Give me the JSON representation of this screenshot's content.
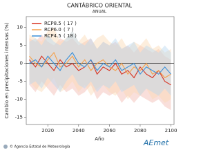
{
  "chart_data": {
    "type": "line",
    "title": "CANTÁBRICO ORIENTAL",
    "subtitle": "ANUAL",
    "ylabel": "Cambio en precipitaciones intensas (%)",
    "xlabel": "Año",
    "footer": "© Agencia Estatal de Meteorología",
    "logo": "AEmet",
    "x": [
      2008,
      2012,
      2016,
      2020,
      2024,
      2028,
      2032,
      2036,
      2040,
      2044,
      2048,
      2052,
      2056,
      2060,
      2064,
      2068,
      2072,
      2076,
      2080,
      2084,
      2088,
      2092,
      2096,
      2100
    ],
    "xlim": [
      2006,
      2102
    ],
    "xticks": [
      2020,
      2040,
      2060,
      2080,
      2100
    ],
    "ylim": [
      -17,
      13
    ],
    "yticks": [
      -15,
      -10,
      -5,
      0,
      5,
      10
    ],
    "legend": "upper-left",
    "series": [
      {
        "name": "RCP8.5",
        "label": "( 17 )",
        "color": "#d7301f",
        "band_color": "#f2b8b0",
        "values": [
          1,
          -1,
          2,
          0,
          -2,
          1,
          -1,
          0,
          -2,
          -1,
          1,
          -3,
          -1,
          -2,
          0,
          -3,
          -2,
          -4,
          -1,
          -3,
          -4,
          -2,
          -5,
          -6
        ],
        "upper": [
          7,
          6,
          8,
          6,
          5,
          7,
          6,
          7,
          5,
          6,
          7,
          4,
          6,
          5,
          6,
          4,
          5,
          3,
          5,
          4,
          3,
          4,
          2,
          1
        ],
        "lower": [
          -6,
          -8,
          -5,
          -7,
          -9,
          -6,
          -8,
          -7,
          -9,
          -8,
          -6,
          -10,
          -8,
          -9,
          -8,
          -11,
          -9,
          -11,
          -9,
          -10,
          -11,
          -10,
          -12,
          -13
        ]
      },
      {
        "name": "RCP6.0",
        "label": "( 7 )",
        "color": "#f5a04a",
        "band_color": "#fbd9b4",
        "values": [
          2,
          0,
          -1,
          1,
          3,
          -1,
          0,
          2,
          -1,
          1,
          -2,
          0,
          1,
          -1,
          -2,
          0,
          -3,
          -1,
          -2,
          0,
          -3,
          -2,
          -4,
          -3
        ],
        "upper": [
          8,
          7,
          6,
          9,
          10,
          6,
          7,
          9,
          6,
          8,
          5,
          7,
          8,
          6,
          5,
          7,
          4,
          6,
          5,
          7,
          4,
          5,
          3,
          4
        ],
        "lower": [
          -5,
          -7,
          -8,
          -6,
          -4,
          -8,
          -7,
          -5,
          -8,
          -6,
          -9,
          -7,
          -6,
          -8,
          -9,
          -7,
          -10,
          -8,
          -9,
          -7,
          -10,
          -9,
          -11,
          -10
        ]
      },
      {
        "name": "RCP4.5",
        "label": "( 18 )",
        "color": "#3a8fd8",
        "band_color": "#b7d6f0",
        "values": [
          0,
          1,
          -1,
          2,
          0,
          -2,
          1,
          3,
          0,
          -1,
          1,
          -2,
          0,
          -1,
          1,
          -2,
          -1,
          0,
          -3,
          -1,
          -2,
          -3,
          -1,
          -3
        ],
        "upper": [
          6,
          7,
          5,
          8,
          6,
          5,
          7,
          9,
          6,
          5,
          7,
          4,
          6,
          5,
          7,
          4,
          5,
          6,
          3,
          5,
          4,
          3,
          5,
          3
        ],
        "lower": [
          -6,
          -5,
          -7,
          -4,
          -6,
          -8,
          -5,
          -3,
          -6,
          -7,
          -5,
          -8,
          -6,
          -7,
          -5,
          -8,
          -7,
          -6,
          -9,
          -7,
          -8,
          -9,
          -7,
          -9
        ]
      }
    ]
  }
}
